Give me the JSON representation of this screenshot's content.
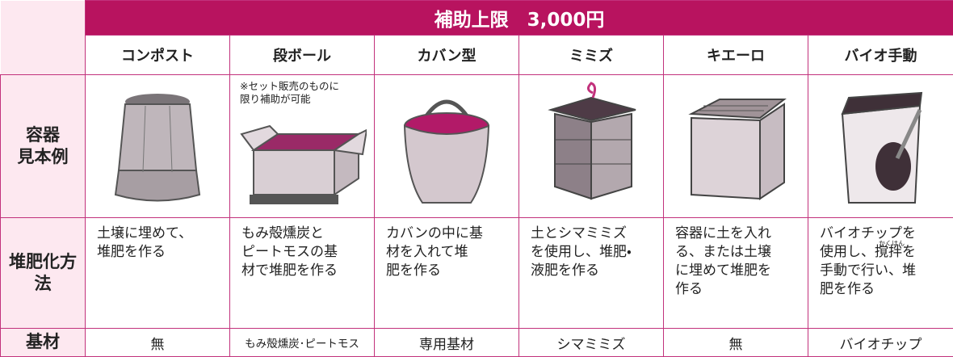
{
  "table": {
    "title": "補助上限　3,000円",
    "columns": [
      "コンポスト",
      "段ボール",
      "カバン型",
      "ミミズ",
      "キエーロ",
      "バイオ手動"
    ],
    "row_labels": [
      "容器\n見本例",
      "堆肥化方法",
      "基材"
    ],
    "image_note": "※セット販売のものに\n限り補助が可能",
    "methods": [
      "土壌に埋めて、\n堆肥を作る",
      "もみ殻燻炭と\nピートモスの基\n材で堆肥を作る",
      "カバンの中に基\n材を入れて堆\n肥を作る",
      "土とシマミミズ\nを使用し、堆肥・\n液肥を作る",
      "容器に土を入れ\nる、または土壌\nに埋めて堆肥を\n作る",
      "バイオチップを\n使用し、撹拌を\n手動で行い、堆\n肥を作る"
    ],
    "method_ruby": "かくはん",
    "materials": [
      "無",
      "もみ殻燻炭･ピートモス",
      "専用基材",
      "シマミミズ",
      "無",
      "バイオチップ"
    ]
  }
}
